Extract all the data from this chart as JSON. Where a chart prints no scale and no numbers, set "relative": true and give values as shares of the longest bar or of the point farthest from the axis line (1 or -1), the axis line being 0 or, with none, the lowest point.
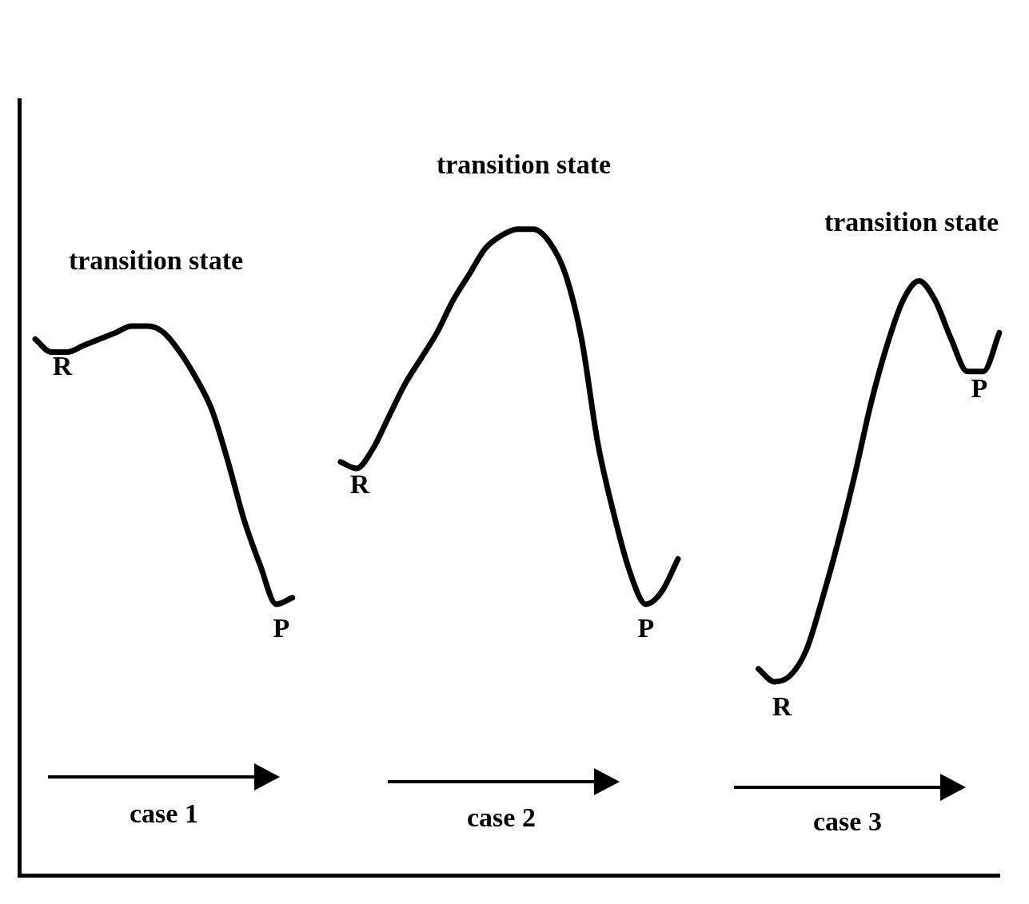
{
  "chart_data": {
    "type": "line",
    "relative": true,
    "legend": false,
    "grid": false,
    "marker": "none",
    "line_style": "solid",
    "categories": [
      null,
      null,
      null,
      null,
      null,
      null,
      null,
      null,
      null,
      null,
      null,
      null,
      null,
      null,
      null,
      null,
      null,
      null,
      null,
      null,
      null,
      null,
      null,
      null,
      null,
      null,
      null,
      null,
      null,
      null,
      null,
      null,
      null,
      null,
      null,
      null,
      null,
      null,
      null,
      null,
      null,
      null,
      null,
      null,
      null,
      null,
      null,
      null,
      null,
      null,
      null,
      null,
      null,
      null,
      null,
      null,
      null,
      null,
      null,
      null,
      null,
      null
    ],
    "series": [
      {
        "color": "#000000",
        "values": [
          null,
          0.83,
          0.81,
          0.81,
          0.82,
          0.83,
          0.84,
          0.85,
          0.85,
          0.84,
          0.81,
          0.77,
          0.72,
          0.64,
          0.55,
          0.48,
          0.42,
          0.43,
          null,
          null,
          null,
          null,
          null,
          null,
          null,
          null,
          null,
          null,
          null,
          null,
          null,
          null,
          null,
          null,
          null,
          null,
          null,
          null,
          null,
          null,
          null,
          null,
          null,
          null,
          null,
          null,
          null,
          null,
          null,
          null,
          null,
          null,
          null,
          null,
          null,
          null,
          null,
          null,
          null,
          null,
          null,
          null
        ]
      },
      {
        "color": "#000000",
        "values": [
          null,
          null,
          null,
          null,
          null,
          null,
          null,
          null,
          null,
          null,
          null,
          null,
          null,
          null,
          null,
          null,
          null,
          null,
          null,
          null,
          0.64,
          0.63,
          0.66,
          0.71,
          0.76,
          0.8,
          0.84,
          0.89,
          0.93,
          0.97,
          0.99,
          1,
          1,
          0.98,
          0.93,
          0.83,
          0.67,
          0.56,
          0.47,
          0.42,
          0.44,
          0.49,
          null,
          null,
          null,
          null,
          null,
          null,
          null,
          null,
          null,
          null,
          null,
          null,
          null,
          null,
          null,
          null,
          null,
          null,
          null,
          null
        ]
      },
      {
        "color": "#000000",
        "values": [
          null,
          null,
          null,
          null,
          null,
          null,
          null,
          null,
          null,
          null,
          null,
          null,
          null,
          null,
          null,
          null,
          null,
          null,
          null,
          null,
          null,
          null,
          null,
          null,
          null,
          null,
          null,
          null,
          null,
          null,
          null,
          null,
          null,
          null,
          null,
          null,
          null,
          null,
          null,
          null,
          null,
          null,
          null,
          null,
          null,
          null,
          0.32,
          0.3,
          0.31,
          0.35,
          0.43,
          0.52,
          0.62,
          0.73,
          0.82,
          0.89,
          0.92,
          0.89,
          0.83,
          0.78,
          0.78,
          0.84
        ]
      }
    ],
    "annotations": [
      "transition state",
      "transition state",
      "transition state",
      "R",
      "R",
      "R",
      "P",
      "P",
      "P",
      "case 1",
      "case 2",
      "case 3"
    ]
  }
}
